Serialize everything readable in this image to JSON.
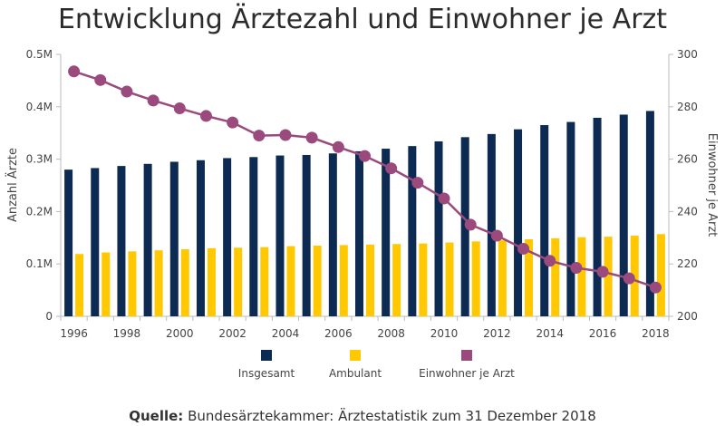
{
  "chart_data": {
    "type": "bar",
    "title": "Entwicklung Ärztezahl und Einwohner je Arzt",
    "ylabel": "Anzahl Ärzte",
    "y2label": "Einwohner je Arzt",
    "ylim": [
      0,
      500000
    ],
    "y2lim": [
      200,
      300
    ],
    "yticks": [
      "0",
      "0.1M",
      "0.2M",
      "0.3M",
      "0.4M",
      "0.5M"
    ],
    "y2ticks": [
      "200",
      "220",
      "240",
      "260",
      "280",
      "300"
    ],
    "x": [
      1996,
      1997,
      1998,
      1999,
      2000,
      2001,
      2002,
      2003,
      2004,
      2005,
      2006,
      2007,
      2008,
      2009,
      2010,
      2011,
      2012,
      2013,
      2014,
      2015,
      2016,
      2017,
      2018
    ],
    "xtick_labels": [
      "1996",
      "1998",
      "2000",
      "2002",
      "2004",
      "2006",
      "2008",
      "2010",
      "2012",
      "2014",
      "2016",
      "2018"
    ],
    "series": [
      {
        "name": "Insgesamt",
        "kind": "bar",
        "color": "#0d2a52",
        "values": [
          280000,
          283000,
          287000,
          291000,
          295000,
          298000,
          302000,
          304000,
          307000,
          308000,
          311000,
          315000,
          320000,
          325000,
          334000,
          342000,
          348000,
          357000,
          365000,
          371000,
          379000,
          385000,
          392000
        ]
      },
      {
        "name": "Ambulant",
        "kind": "bar",
        "color": "#ffc800",
        "values": [
          119000,
          122000,
          124000,
          126000,
          128000,
          130000,
          131000,
          132000,
          134000,
          135000,
          136000,
          137000,
          138000,
          139000,
          141000,
          143000,
          145000,
          147000,
          149000,
          151000,
          152000,
          154000,
          157000
        ]
      },
      {
        "name": "Einwohner je Arzt",
        "kind": "line",
        "axis": "right",
        "color": "#9b4a7d",
        "values": [
          293.5,
          290.2,
          285.8,
          282.4,
          279.4,
          276.5,
          274.0,
          269.0,
          269.2,
          268.2,
          264.6,
          261.2,
          256.5,
          251.0,
          245.0,
          235.0,
          230.8,
          225.8,
          221.2,
          218.5,
          217.0,
          214.5,
          211.0
        ]
      }
    ],
    "legend_position": "bottom",
    "grid": false
  },
  "source": {
    "label": "Quelle:",
    "text": "Bundesärztekammer: Ärztestatistik zum 31 Dezember 2018"
  }
}
